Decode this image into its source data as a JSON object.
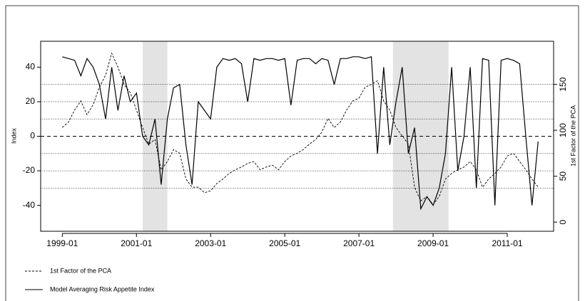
{
  "chart_data": {
    "type": "line",
    "y_label": "Index",
    "y2_label": "1st Factor of the PCA",
    "xlim": [
      "1998-06",
      "2012-04"
    ],
    "xticks": [
      "1999-01",
      "2001-01",
      "2003-01",
      "2005-01",
      "2007-01",
      "2009-01",
      "2011-01"
    ],
    "ylim": [
      -55,
      55
    ],
    "yticks": [
      -40,
      -20,
      0,
      20,
      40
    ],
    "y2lim": [
      -10,
      197
    ],
    "y2ticks": [
      0,
      50,
      100,
      150
    ],
    "hlines": [
      30,
      20,
      10,
      -10,
      -20,
      -30
    ],
    "zero_line": 0,
    "shaded": [
      [
        "2001-03",
        "2001-11"
      ],
      [
        "2007-12",
        "2009-06"
      ]
    ],
    "x": [
      "1999-01",
      "1999-03",
      "1999-05",
      "1999-07",
      "1999-09",
      "1999-11",
      "2000-01",
      "2000-03",
      "2000-05",
      "2000-07",
      "2000-09",
      "2000-11",
      "2001-01",
      "2001-03",
      "2001-05",
      "2001-07",
      "2001-09",
      "2001-11",
      "2002-01",
      "2002-03",
      "2002-05",
      "2002-07",
      "2002-09",
      "2002-11",
      "2003-01",
      "2003-03",
      "2003-05",
      "2003-07",
      "2003-09",
      "2003-11",
      "2004-01",
      "2004-03",
      "2004-05",
      "2004-07",
      "2004-09",
      "2004-11",
      "2005-01",
      "2005-03",
      "2005-05",
      "2005-07",
      "2005-09",
      "2005-11",
      "2006-01",
      "2006-03",
      "2006-05",
      "2006-07",
      "2006-09",
      "2006-11",
      "2007-01",
      "2007-03",
      "2007-05",
      "2007-07",
      "2007-09",
      "2007-11",
      "2008-01",
      "2008-03",
      "2008-05",
      "2008-07",
      "2008-09",
      "2008-11",
      "2009-01",
      "2009-03",
      "2009-05",
      "2009-07",
      "2009-09",
      "2009-11",
      "2010-01",
      "2010-03",
      "2010-05",
      "2010-07",
      "2010-09",
      "2010-11",
      "2011-01",
      "2011-03",
      "2011-05",
      "2011-07",
      "2011-09",
      "2011-11"
    ],
    "series": [
      {
        "name": "1st Factor of the PCA",
        "color": "#000000",
        "dash": "3,2",
        "axis": "y2",
        "values": [
          103,
          109,
          122,
          132,
          117,
          128,
          147,
          160,
          184,
          169,
          150,
          141,
          122,
          103,
          85,
          90,
          57,
          66,
          79,
          75,
          47,
          38,
          38,
          32,
          34,
          42,
          47,
          53,
          57,
          60,
          64,
          66,
          57,
          60,
          62,
          57,
          66,
          72,
          75,
          79,
          85,
          90,
          98,
          113,
          103,
          109,
          122,
          132,
          135,
          147,
          150,
          154,
          132,
          122,
          103,
          94,
          85,
          38,
          23,
          28,
          19,
          28,
          47,
          53,
          57,
          60,
          66,
          57,
          38,
          47,
          53,
          60,
          72,
          75,
          66,
          57,
          47,
          38
        ]
      },
      {
        "name": "Model Averaging Risk Appetite Index",
        "color": "#000000",
        "dash": "none",
        "values": [
          46,
          45,
          44,
          35,
          45,
          40,
          30,
          10,
          40,
          15,
          35,
          20,
          25,
          0,
          -5,
          10,
          -28,
          10,
          28,
          30,
          -5,
          -28,
          20,
          15,
          10,
          40,
          45,
          44,
          45,
          42,
          20,
          45,
          44,
          45,
          45,
          44,
          45,
          18,
          44,
          45,
          45,
          42,
          45,
          44,
          30,
          45,
          45,
          46,
          46,
          45,
          46,
          -10,
          40,
          -5,
          20,
          40,
          -10,
          5,
          -42,
          -35,
          -40,
          -30,
          -10,
          40,
          -20,
          0,
          40,
          -30,
          45,
          44,
          -40,
          44,
          45,
          44,
          42,
          0,
          -40,
          -3
        ]
      }
    ]
  }
}
